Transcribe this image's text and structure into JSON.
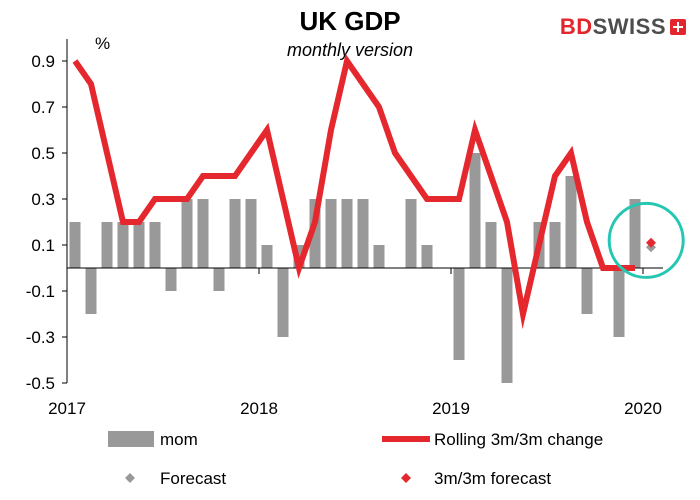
{
  "header": {
    "title": "UK GDP",
    "subtitle": "monthly version",
    "unit": "%",
    "brand_left": "BD",
    "brand_right": "SWISS"
  },
  "colors": {
    "mom_bar": "#999999",
    "rolling_line": "#e5282e",
    "forecast_marker": "#999999",
    "forecast_3m_marker": "#e5282e",
    "highlight_circle": "#25c7b3",
    "axis": "#000000"
  },
  "legend": {
    "mom": "mom",
    "rolling": "Rolling 3m/3m change",
    "forecast": "Forecast",
    "forecast_3m": "3m/3m forecast"
  },
  "chart_data": {
    "type": "bar",
    "title": "UK GDP",
    "subtitle": "monthly version",
    "ylabel": "%",
    "ylim": [
      -0.5,
      1.0
    ],
    "yticks": [
      0.9,
      0.7,
      0.5,
      0.3,
      0.1,
      -0.1,
      -0.3,
      -0.5
    ],
    "ytick_labels": [
      "0.9",
      "0.7",
      "0.5",
      "0.3",
      "0.1",
      "-0.1",
      "-0.3",
      "-0.5"
    ],
    "x_labels": [
      "2017",
      "2018",
      "2019",
      "2020"
    ],
    "x_label_month_index": [
      0,
      12,
      24,
      36
    ],
    "grid": false,
    "legend_position": "bottom",
    "series": [
      {
        "name": "mom",
        "type": "bar",
        "values": [
          0.2,
          -0.2,
          0.2,
          0.2,
          0.2,
          0.2,
          -0.1,
          0.3,
          0.3,
          -0.1,
          0.3,
          0.3,
          0.1,
          -0.3,
          0.1,
          0.3,
          0.3,
          0.3,
          0.3,
          0.1,
          0.0,
          0.3,
          0.1,
          0.0,
          -0.4,
          0.5,
          0.2,
          -0.5,
          0.0,
          0.2,
          0.2,
          0.4,
          -0.2,
          0.0,
          -0.3,
          0.3
        ]
      },
      {
        "name": "Rolling 3m/3m change",
        "type": "line",
        "values": [
          0.9,
          0.8,
          0.5,
          0.2,
          0.2,
          0.3,
          0.3,
          0.3,
          0.4,
          0.4,
          0.4,
          0.5,
          0.6,
          0.3,
          0.0,
          0.2,
          0.6,
          0.9,
          0.8,
          0.7,
          0.5,
          0.4,
          0.3,
          0.3,
          0.3,
          0.6,
          0.4,
          0.2,
          -0.2,
          0.1,
          0.4,
          0.5,
          0.2,
          0.0,
          0.0,
          0.0
        ]
      },
      {
        "name": "Forecast",
        "type": "marker",
        "x_index": 36,
        "values": [
          0.09
        ]
      },
      {
        "name": "3m/3m forecast",
        "type": "marker",
        "x_index": 36,
        "values": [
          0.11
        ]
      }
    ],
    "annotations": [
      {
        "type": "circle",
        "x_index": 35.7,
        "y": 0.12,
        "note": ""
      }
    ]
  }
}
